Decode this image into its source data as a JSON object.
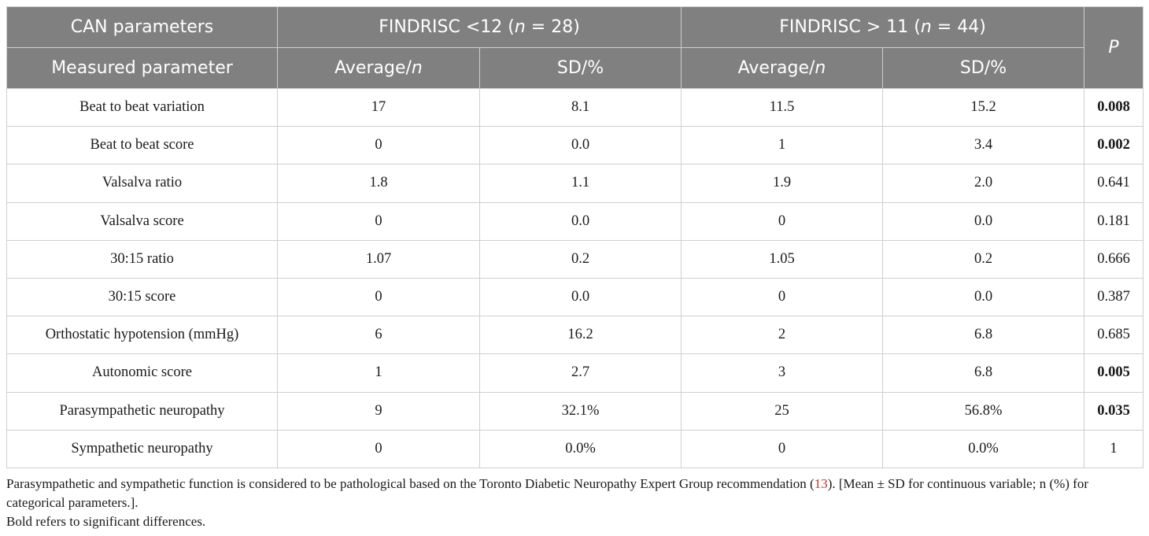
{
  "table": {
    "header_row1": {
      "can_parameters": "CAN parameters",
      "group1_prefix": "FINDRISC <12 (",
      "group1_n": "n",
      "group1_suffix": " = 28)",
      "group2_prefix": "FINDRISC > 11 (",
      "group2_n": "n",
      "group2_suffix": " = 44)",
      "p": "P"
    },
    "header_row2": {
      "measured_parameter": "Measured parameter",
      "avg_prefix_1": "Average/",
      "avg_n_1": "n",
      "sd_1": "SD/%",
      "avg_prefix_2": "Average/",
      "avg_n_2": "n",
      "sd_2": "SD/%"
    },
    "rows": [
      {
        "param": "Beat to beat variation",
        "avg1": "17",
        "sd1": "8.1",
        "avg2": "11.5",
        "sd2": "15.2",
        "p": "0.008",
        "significant": true
      },
      {
        "param": "Beat to beat score",
        "avg1": "0",
        "sd1": "0.0",
        "avg2": "1",
        "sd2": "3.4",
        "p": "0.002",
        "significant": true
      },
      {
        "param": "Valsalva ratio",
        "avg1": "1.8",
        "sd1": "1.1",
        "avg2": "1.9",
        "sd2": "2.0",
        "p": "0.641",
        "significant": false
      },
      {
        "param": "Valsalva score",
        "avg1": "0",
        "sd1": "0.0",
        "avg2": "0",
        "sd2": "0.0",
        "p": "0.181",
        "significant": false
      },
      {
        "param": "30:15 ratio",
        "avg1": "1.07",
        "sd1": "0.2",
        "avg2": "1.05",
        "sd2": "0.2",
        "p": "0.666",
        "significant": false
      },
      {
        "param": "30:15 score",
        "avg1": "0",
        "sd1": "0.0",
        "avg2": "0",
        "sd2": "0.0",
        "p": "0.387",
        "significant": false
      },
      {
        "param": "Orthostatic hypotension (mmHg)",
        "avg1": "6",
        "sd1": "16.2",
        "avg2": "2",
        "sd2": "6.8",
        "p": "0.685",
        "significant": false
      },
      {
        "param": "Autonomic score",
        "avg1": "1",
        "sd1": "2.7",
        "avg2": "3",
        "sd2": "6.8",
        "p": "0.005",
        "significant": true
      },
      {
        "param": "Parasympathetic neuropathy",
        "avg1": "9",
        "sd1": "32.1%",
        "avg2": "25",
        "sd2": "56.8%",
        "p": "0.035",
        "significant": true
      },
      {
        "param": "Sympathetic neuropathy",
        "avg1": "0",
        "sd1": "0.0%",
        "avg2": "0",
        "sd2": "0.0%",
        "p": "1",
        "significant": false
      }
    ]
  },
  "footnotes": {
    "line1_before_ref": "Parasympathetic and sympathetic function is considered to be pathological based on the Toronto Diabetic Neuropathy Expert Group recommendation (",
    "ref": "13",
    "line1_after_ref": "). [Mean ± SD for continuous variable; n (%) for categorical parameters.].",
    "line2": "Bold refers to significant differences."
  },
  "colors": {
    "header_bg": "#808080",
    "header_text": "#ffffff",
    "border": "#cfcfcf",
    "ref_link": "#c0392b"
  }
}
